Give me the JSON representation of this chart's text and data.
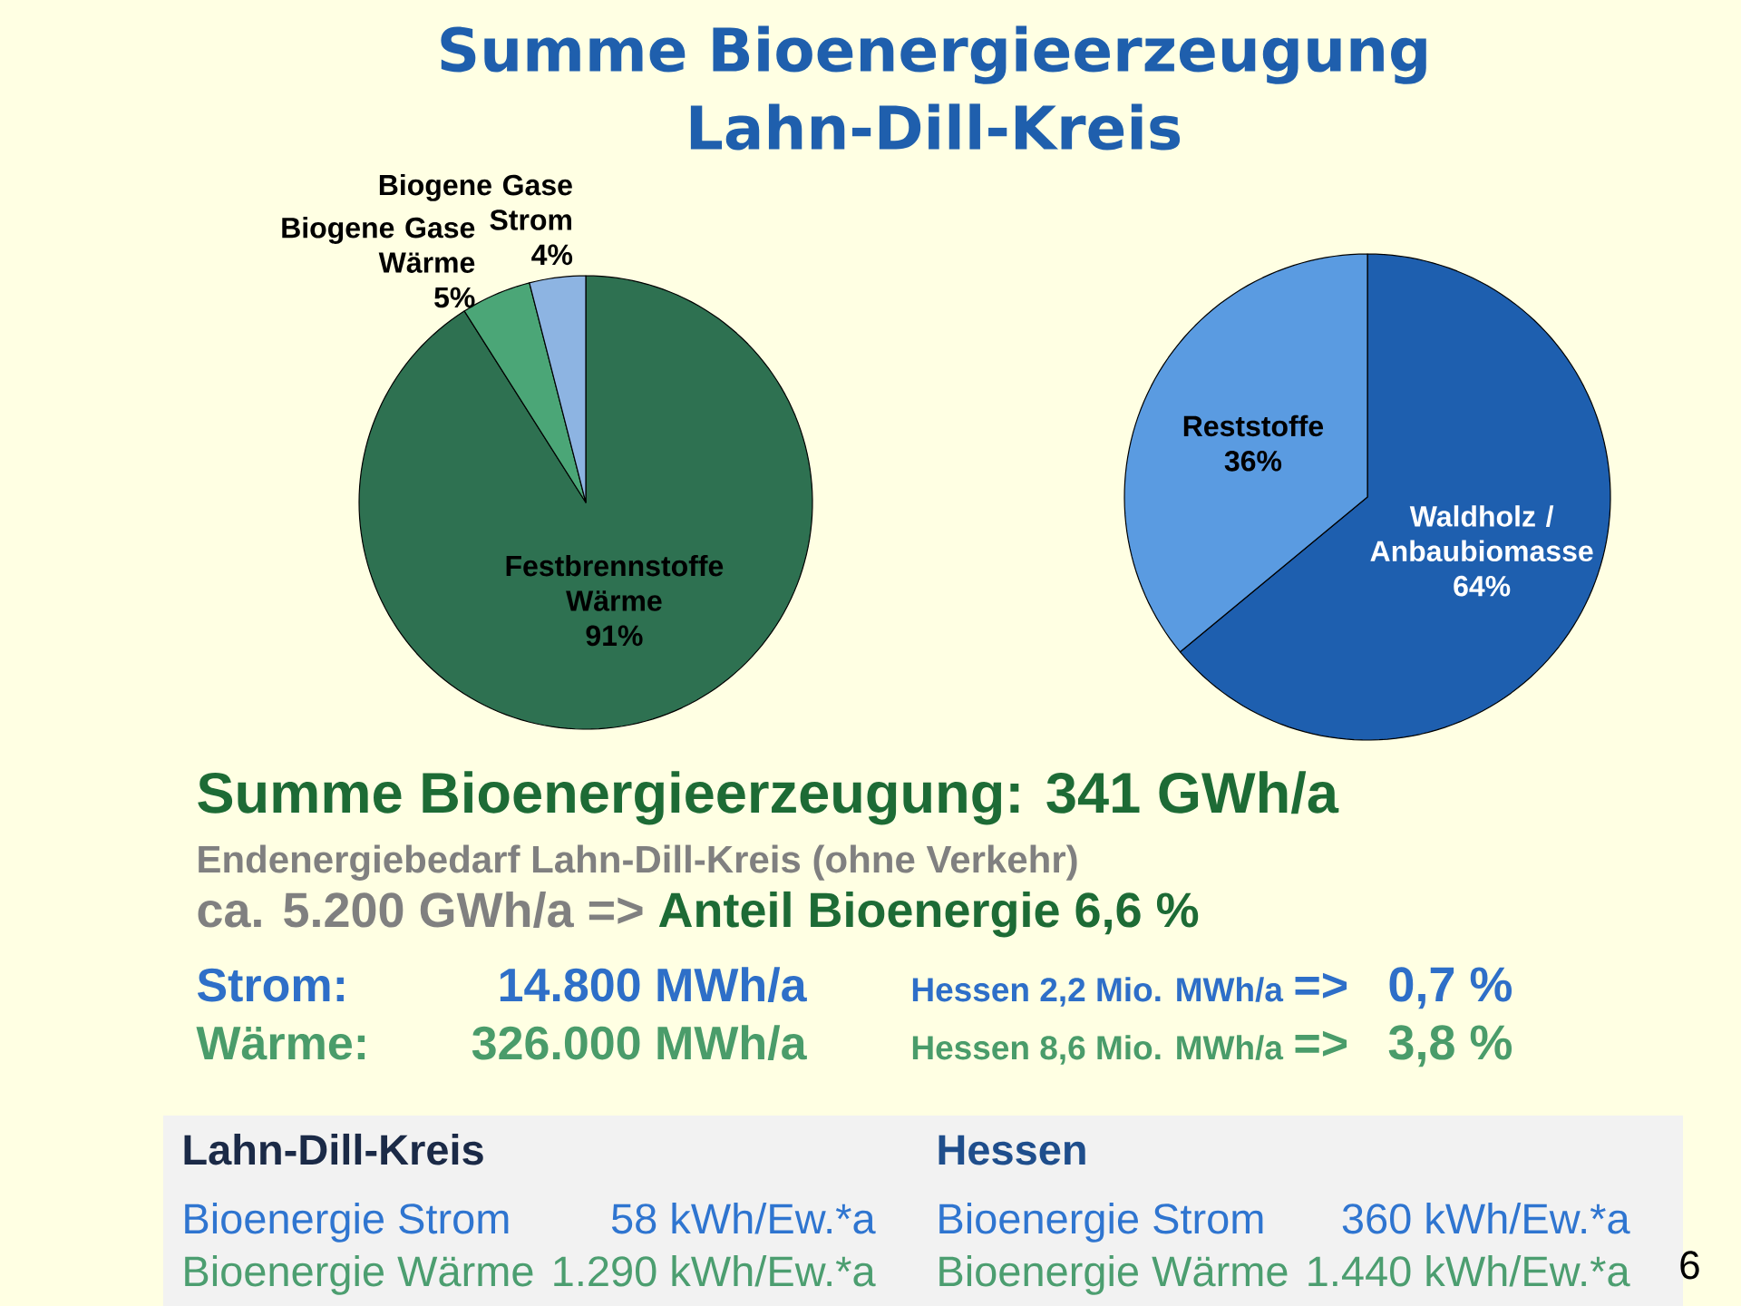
{
  "chart_data": [
    {
      "type": "pie",
      "title": "Summe Bioenergieerzeugung Lahn-Dill-Kreis",
      "categories": [
        "Festbrennstoffe\nWärme",
        "Biogene Gase\nWärme",
        "Biogene Gase\nStrom"
      ],
      "values": [
        91,
        5,
        4
      ],
      "value_labels": [
        "91%",
        "5%",
        "4%"
      ],
      "colors": [
        "#2E7151",
        "#4BA677",
        "#8DB4E2"
      ]
    },
    {
      "type": "pie",
      "categories": [
        "Waldholz /\nAnbaubiomasse",
        "Reststoffe"
      ],
      "values": [
        64,
        36
      ],
      "value_labels": [
        "64%",
        "36%"
      ],
      "colors": [
        "#1E5FAF",
        "#5A9BE1"
      ]
    },
    {
      "type": "other",
      "annotations": [
        "Summe Bioenergieerzeugung: 341 GWh/a",
        "Endenergiebedarf Lahn-Dill-Kreis (ohne Verkehr)",
        "ca. 5.200 GWh/a =>",
        "Anteil Bioenergie 6,6 %",
        "Strom:",
        "14.800 MWh/a",
        "Hessen 2,2 Mio. MWh/a",
        "=>",
        "0,7 %",
        "Wärme:",
        "326.000 MWh/a",
        "Hessen 8,6 Mio. MWh/a",
        "=>",
        "3,8 %",
        "Lahn-Dill-Kreis",
        "Hessen",
        "Bioenergie Strom",
        "58 kWh/Ew.*a",
        "Bioenergie Wärme",
        "1.290 kWh/Ew.*a",
        "Bioenergie Strom",
        "360 kWh/Ew.*a",
        "Bioenergie Wärme",
        "1.440 kWh/Ew.*a",
        "6"
      ]
    }
  ]
}
